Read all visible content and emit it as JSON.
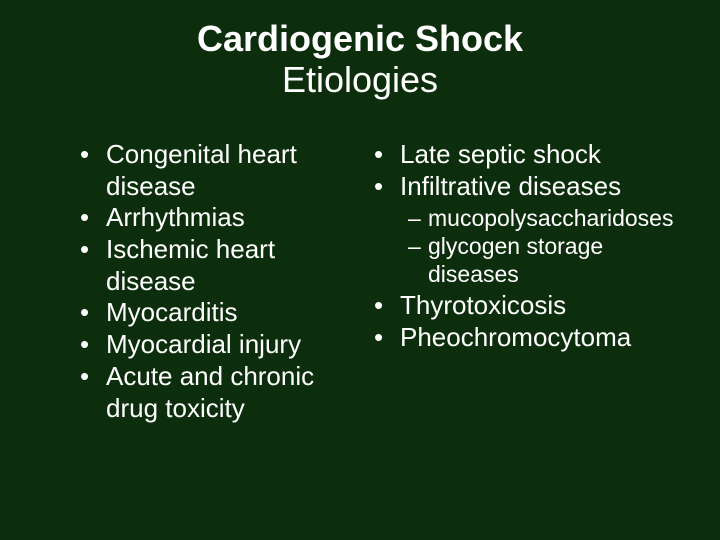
{
  "background_color": "#0d2e0d",
  "text_color": "#ffffff",
  "font_family": "Arial",
  "title": {
    "line1": "Cardiogenic Shock",
    "line2": "Etiologies",
    "fontsize": 36,
    "line1_weight": "bold",
    "line2_weight": "normal",
    "align": "center"
  },
  "body_fontsize": 26,
  "sub_fontsize": 23,
  "columns": {
    "left": {
      "items": [
        "Congenital heart disease",
        "Arrhythmias",
        "Ischemic heart disease",
        "Myocarditis",
        "Myocardial injury",
        "Acute and chronic drug toxicity"
      ]
    },
    "right": {
      "items": [
        {
          "text": "Late septic shock"
        },
        {
          "text": "Infiltrative diseases",
          "sub": [
            "mucopolysaccharidoses",
            "glycogen storage diseases"
          ]
        },
        {
          "text": "Thyrotoxicosis"
        },
        {
          "text": "Pheochromocytoma"
        }
      ]
    }
  }
}
